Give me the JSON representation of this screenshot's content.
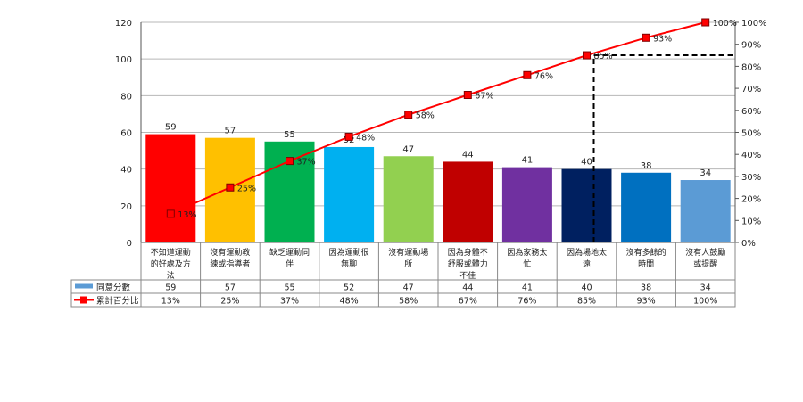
{
  "chart_data": {
    "type": "bar",
    "categories": [
      "不知道運動的好處及方法",
      "沒有運動教練或指導者",
      "缺乏運動同伴",
      "因為運動很無聊",
      "沒有運動場所",
      "因為身體不舒服或體力不佳",
      "因為家務太忙",
      "因為場地太遠",
      "沒有多餘的時間",
      "沒有人鼓勵或提醒"
    ],
    "category_lines": [
      [
        "不知道運動",
        "的好處及方",
        "法"
      ],
      [
        "沒有運動教",
        "練或指導者"
      ],
      [
        "缺乏運動同",
        "伴"
      ],
      [
        "因為運動很",
        "無聊"
      ],
      [
        "沒有運動場",
        "所"
      ],
      [
        "因為身體不",
        "舒服或體力",
        "不佳"
      ],
      [
        "因為家務太",
        "忙"
      ],
      [
        "因為場地太",
        "遠"
      ],
      [
        "沒有多餘的",
        "時間"
      ],
      [
        "沒有人鼓勵",
        "或提醒"
      ]
    ],
    "series": [
      {
        "name": "同意分數",
        "type": "bar",
        "values": [
          59,
          57,
          55,
          52,
          47,
          44,
          41,
          40,
          38,
          34
        ],
        "colors": [
          "#ff0000",
          "#ffc000",
          "#00b050",
          "#00b0f0",
          "#92d050",
          "#c00000",
          "#7030a0",
          "#002060",
          "#0070c0",
          "#5b9bd5"
        ],
        "labels": [
          "59",
          "57",
          "55",
          "52",
          "47",
          "44",
          "41",
          "40",
          "38",
          "34"
        ]
      },
      {
        "name": "累計百分比",
        "type": "line",
        "values": [
          13,
          25,
          37,
          48,
          58,
          67,
          76,
          85,
          93,
          100
        ],
        "color": "#ff0000",
        "labels": [
          "13%",
          "25%",
          "37%",
          "48%",
          "58%",
          "67%",
          "76%",
          "85%",
          "93%",
          "100%"
        ]
      }
    ],
    "y_left": {
      "ticks": [
        "0",
        "20",
        "40",
        "60",
        "80",
        "100",
        "120"
      ],
      "ylim": [
        0,
        120
      ]
    },
    "y_right": {
      "ticks": [
        "0%",
        "10%",
        "20%",
        "30%",
        "40%",
        "50%",
        "60%",
        "70%",
        "80%",
        "90%",
        "100%"
      ],
      "ylim": [
        0,
        100
      ]
    },
    "reference_line": {
      "at_category_index": 7,
      "at_percent": 85,
      "style": "dashed",
      "color": "#000000"
    },
    "grid": true,
    "legend": "data-table",
    "data_table": {
      "rows": [
        {
          "name": "同意分數",
          "values": [
            "59",
            "57",
            "55",
            "52",
            "47",
            "44",
            "41",
            "40",
            "38",
            "34"
          ]
        },
        {
          "name": "累計百分比",
          "values": [
            "13%",
            "25%",
            "37%",
            "48%",
            "58%",
            "67%",
            "76%",
            "85%",
            "93%",
            "100%"
          ]
        }
      ]
    }
  }
}
